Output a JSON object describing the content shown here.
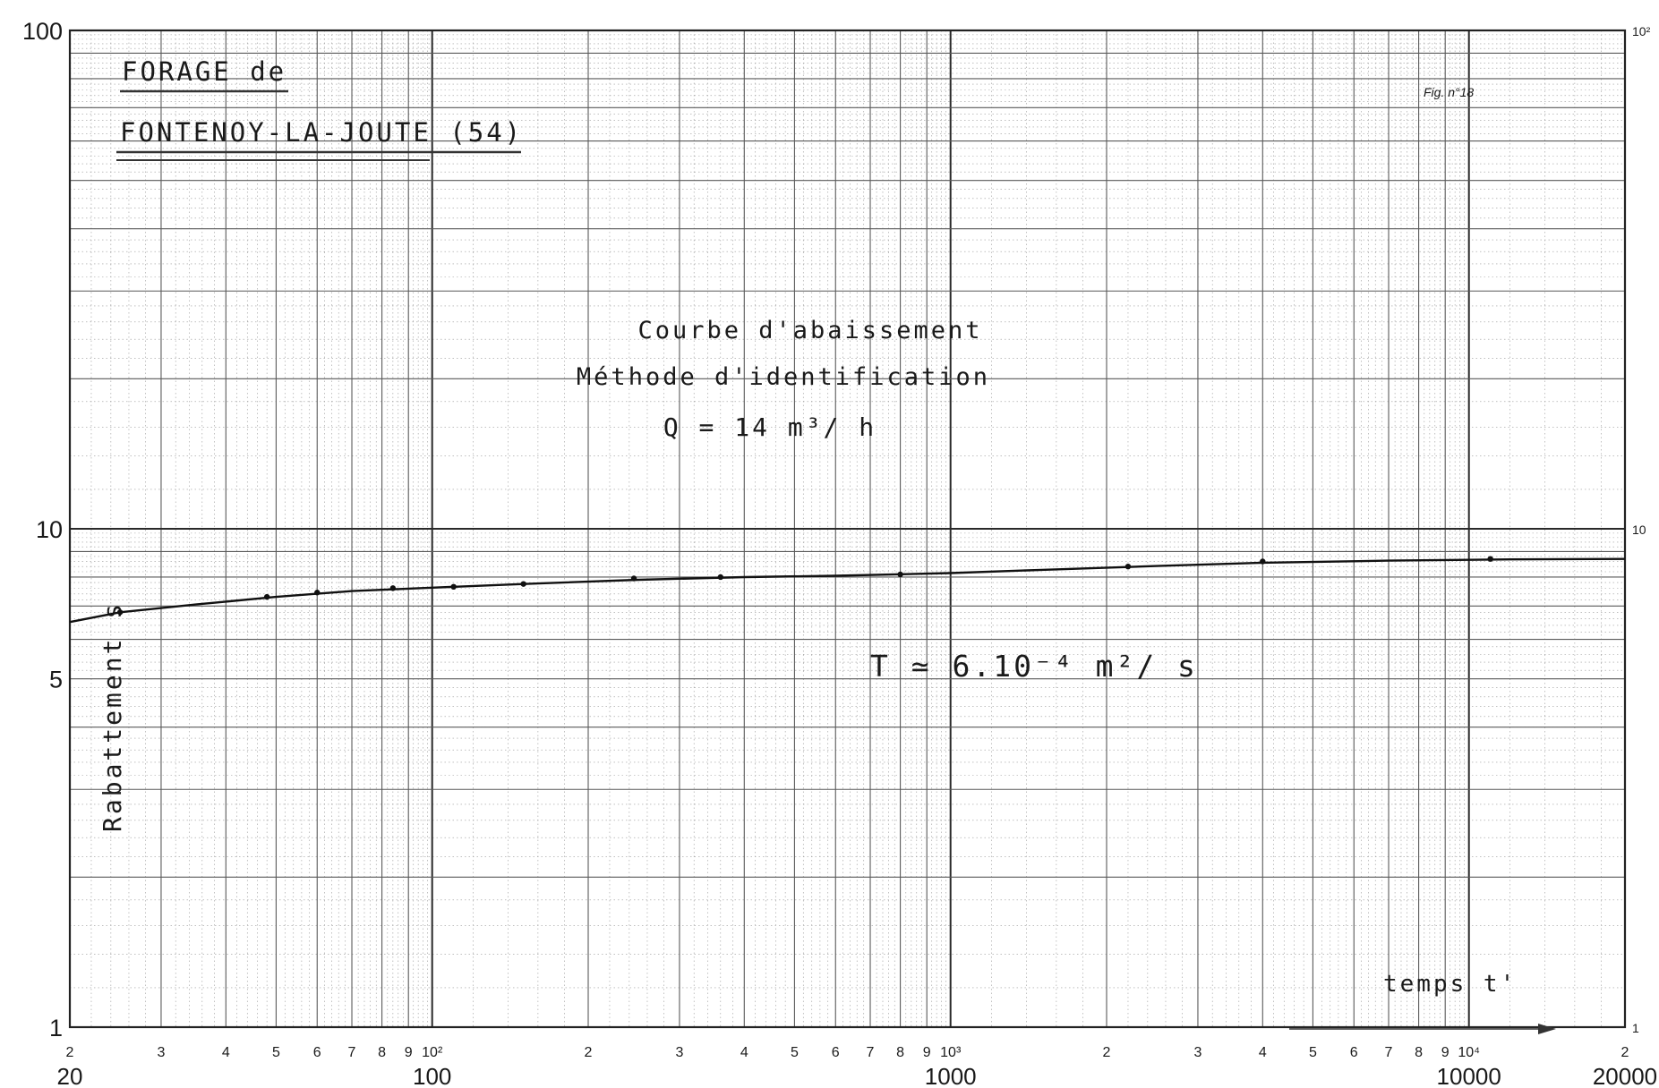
{
  "chart_data": {
    "type": "line",
    "scale": {
      "x": "log",
      "y": "log"
    },
    "xlim": [
      20,
      20000
    ],
    "ylim": [
      1,
      100
    ],
    "title": "FORAGE de",
    "subtitle": "FONTENOY-LA-JOUTE (54)",
    "figure_ref": "Fig. n°18",
    "annotations": [
      "Courbe d'abaissement",
      "Méthode d'identification",
      "Q = 14 m³/ h",
      "T ≃ 6.10⁻⁴ m²/ s"
    ],
    "xlabel": "temps t'",
    "ylabel": "Rabattement  s",
    "y_ticks": [
      {
        "value": 1,
        "label": "1"
      },
      {
        "value": 5,
        "label": "5"
      },
      {
        "value": 10,
        "label": "10"
      },
      {
        "value": 100,
        "label": "100"
      }
    ],
    "y_ticks_right": [
      {
        "value": 1,
        "label": "1"
      },
      {
        "value": 10,
        "label": "10"
      },
      {
        "value": 100,
        "label": "10²"
      }
    ],
    "x_minor_ticks": [
      {
        "value": 20,
        "label": "2"
      },
      {
        "value": 30,
        "label": "3"
      },
      {
        "value": 40,
        "label": "4"
      },
      {
        "value": 50,
        "label": "5"
      },
      {
        "value": 60,
        "label": "6"
      },
      {
        "value": 70,
        "label": "7"
      },
      {
        "value": 80,
        "label": "8"
      },
      {
        "value": 90,
        "label": "9"
      },
      {
        "value": 100,
        "label": "10²"
      },
      {
        "value": 200,
        "label": "2"
      },
      {
        "value": 300,
        "label": "3"
      },
      {
        "value": 400,
        "label": "4"
      },
      {
        "value": 500,
        "label": "5"
      },
      {
        "value": 600,
        "label": "6"
      },
      {
        "value": 700,
        "label": "7"
      },
      {
        "value": 800,
        "label": "8"
      },
      {
        "value": 900,
        "label": "9"
      },
      {
        "value": 1000,
        "label": "10³"
      },
      {
        "value": 2000,
        "label": "2"
      },
      {
        "value": 3000,
        "label": "3"
      },
      {
        "value": 4000,
        "label": "4"
      },
      {
        "value": 5000,
        "label": "5"
      },
      {
        "value": 6000,
        "label": "6"
      },
      {
        "value": 7000,
        "label": "7"
      },
      {
        "value": 8000,
        "label": "8"
      },
      {
        "value": 9000,
        "label": "9"
      },
      {
        "value": 10000,
        "label": "10⁴"
      },
      {
        "value": 20000,
        "label": "2"
      }
    ],
    "x_major_ticks": [
      {
        "value": 20,
        "label": "20"
      },
      {
        "value": 100,
        "label": "100"
      },
      {
        "value": 1000,
        "label": "1000"
      },
      {
        "value": 10000,
        "label": "10000"
      },
      {
        "value": 20000,
        "label": "20000"
      }
    ],
    "grid": true,
    "series": [
      {
        "points": [
          [
            25,
            6.8
          ],
          [
            48,
            7.3
          ],
          [
            60,
            7.45
          ],
          [
            84,
            7.6
          ],
          [
            110,
            7.65
          ],
          [
            150,
            7.75
          ],
          [
            245,
            7.95
          ],
          [
            360,
            8.0
          ],
          [
            800,
            8.1
          ],
          [
            2200,
            8.4
          ],
          [
            4000,
            8.6
          ],
          [
            11000,
            8.7
          ]
        ],
        "curve": [
          [
            20,
            6.5
          ],
          [
            25,
            6.8
          ],
          [
            35,
            7.05
          ],
          [
            50,
            7.3
          ],
          [
            70,
            7.5
          ],
          [
            100,
            7.62
          ],
          [
            150,
            7.75
          ],
          [
            250,
            7.9
          ],
          [
            400,
            8.0
          ],
          [
            600,
            8.05
          ],
          [
            1000,
            8.15
          ],
          [
            1500,
            8.27
          ],
          [
            2500,
            8.42
          ],
          [
            4000,
            8.55
          ],
          [
            7000,
            8.63
          ],
          [
            12000,
            8.68
          ],
          [
            20000,
            8.7
          ]
        ]
      }
    ]
  }
}
